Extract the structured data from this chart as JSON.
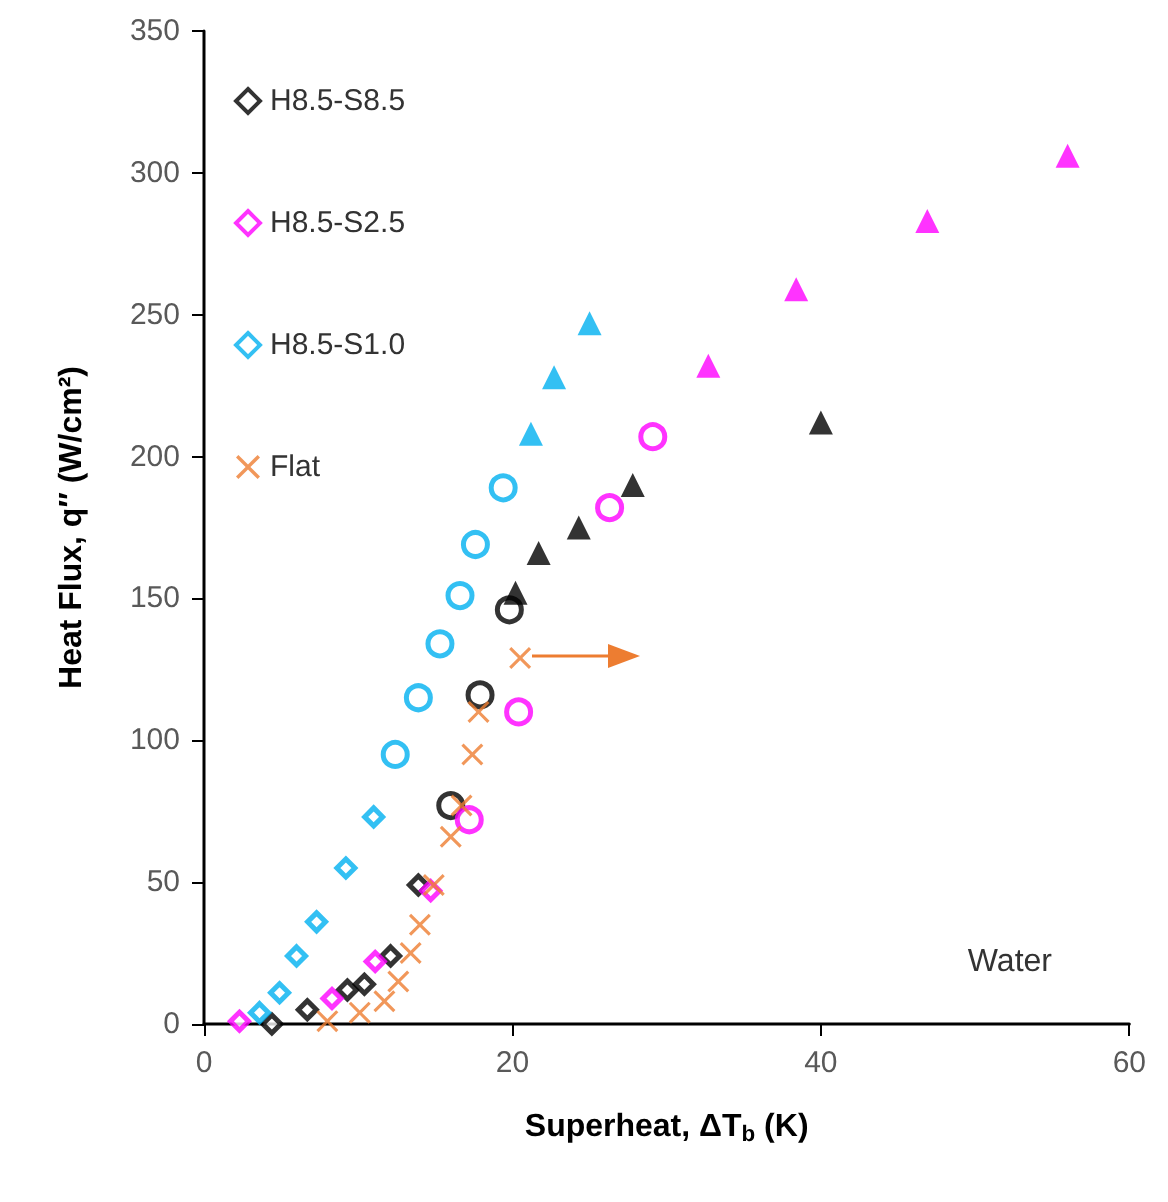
{
  "chart_data": {
    "type": "scatter",
    "xlabel": "Superheat, ΔT$_{b}$ (K)",
    "ylabel": "Heat Flux, q″ (W/cm²)",
    "xlim": [
      0,
      60
    ],
    "xticks": [
      0,
      20,
      40,
      60
    ],
    "ylim": [
      0,
      350
    ],
    "yticks": [
      0,
      50,
      100,
      150,
      200,
      250,
      300,
      350
    ],
    "grid": false,
    "legend": "top left",
    "annotations": [
      "Water"
    ],
    "series": [
      {
        "name": "H8.5-S8.5",
        "color": "#000000",
        "marker": "diamond",
        "x": [
          4.4,
          6.7,
          9.3,
          10.4,
          12.1,
          13.9
        ],
        "values": [
          0,
          5,
          12,
          14,
          24,
          49
        ]
      },
      {
        "name": "H8.5-S2.5",
        "color": "#ff00ff",
        "marker": "diamond",
        "x": [
          2.3,
          8.3,
          11.1,
          14.7
        ],
        "values": [
          1,
          9,
          22,
          47
        ]
      },
      {
        "name": "H8.5-S1.0",
        "color": "#00b0f0",
        "marker": "diamond",
        "x": [
          3.6,
          4.9,
          6.0,
          7.3,
          9.2,
          11.0
        ],
        "values": [
          4,
          11,
          24,
          36,
          55,
          73
        ]
      },
      {
        "name": "Flat",
        "color": "#ed7d31",
        "marker": "cross",
        "x": [
          8.0,
          10.1,
          11.7,
          12.6,
          13.4,
          14.0,
          14.9,
          16.0,
          16.7,
          17.4,
          17.8,
          20.5
        ],
        "values": [
          1,
          4,
          8,
          15,
          25,
          35,
          49,
          66,
          77,
          95,
          110,
          129
        ]
      },
      {
        "color": "#000000",
        "marker": "circle",
        "x": [
          16.0,
          17.9,
          19.8
        ],
        "values": [
          77,
          116,
          146
        ]
      },
      {
        "color": "#000000",
        "marker": "triangle",
        "x": [
          20.2
        ],
        "values": [
          152
        ]
      },
      {
        "color": "#000000",
        "marker": "triangle",
        "x": [
          21.7,
          24.3,
          27.8,
          40.0
        ],
        "values": [
          166,
          175,
          190,
          212
        ]
      },
      {
        "color": "#ff00ff",
        "marker": "circle",
        "x": [
          17.2,
          20.4,
          26.3,
          29.1
        ],
        "values": [
          72,
          110,
          182,
          207
        ]
      },
      {
        "color": "#ff00ff",
        "marker": "triangle",
        "x": [
          32.7,
          38.4,
          46.9,
          56.0
        ],
        "values": [
          232,
          259,
          283,
          306
        ]
      },
      {
        "color": "#00b0f0",
        "marker": "circle",
        "x": [
          12.4,
          13.9,
          15.3,
          16.6
        ],
        "values": [
          95,
          115,
          134,
          151
        ]
      },
      {
        "color": "#00b0f0",
        "marker": "circle",
        "x": [
          17.6,
          19.4
        ],
        "values": [
          169,
          189
        ]
      },
      {
        "color": "#00b0f0",
        "marker": "triangle",
        "x": [
          21.2,
          22.7,
          25.0
        ],
        "values": [
          208,
          228,
          247
        ]
      }
    ]
  }
}
